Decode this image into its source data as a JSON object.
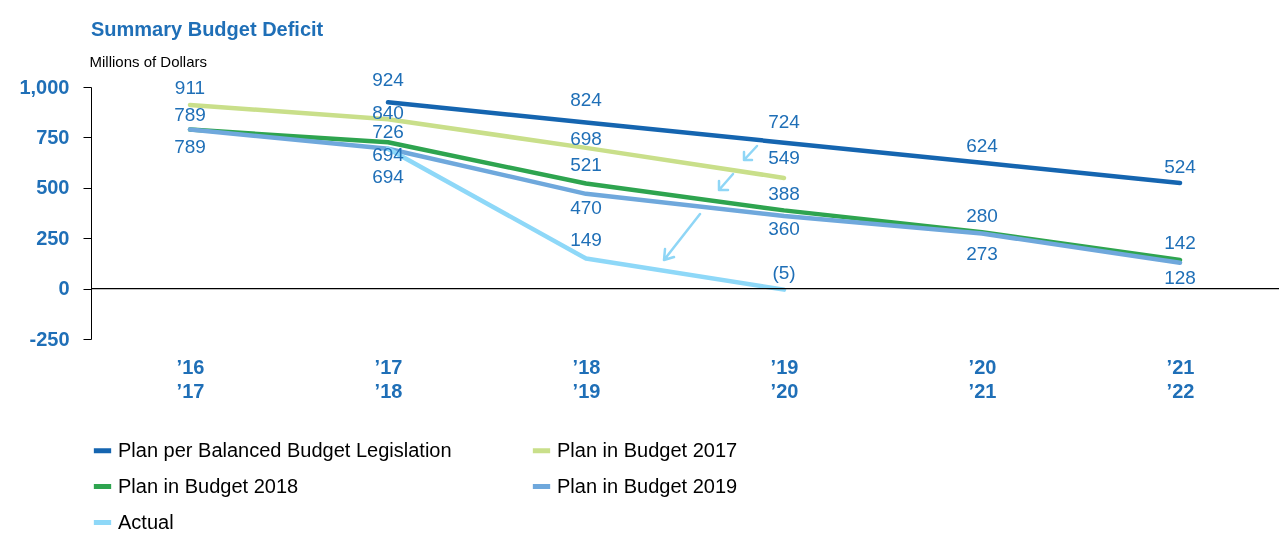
{
  "chart_data": {
    "type": "line",
    "title": "Summary Budget Deficit",
    "ylabel": "Millions of Dollars",
    "categories": [
      "’16\n’17",
      "’17\n’18",
      "’18\n’19",
      "’19\n’20",
      "’20\n’21",
      "’21\n’22"
    ],
    "series": [
      {
        "name": "Plan per Balanced Budget Legislation",
        "color": "#1565b0",
        "values": [
          null,
          924,
          824,
          724,
          624,
          524
        ],
        "value_labels": [
          null,
          "924",
          "824",
          "724",
          "624",
          "524"
        ]
      },
      {
        "name": "Plan in Budget 2017",
        "color": "#c9df8a",
        "values": [
          911,
          840,
          698,
          549,
          null,
          null
        ],
        "value_labels": [
          "911",
          "840",
          "698",
          "549",
          null,
          null
        ]
      },
      {
        "name": "Plan in Budget 2018",
        "color": "#2ea44f",
        "values": [
          789,
          726,
          521,
          388,
          280,
          142
        ],
        "value_labels": [
          "789",
          "726",
          "521",
          "388",
          "280",
          "142"
        ]
      },
      {
        "name": "Plan in Budget 2019",
        "color": "#6fa8dc",
        "values": [
          789,
          694,
          470,
          360,
          273,
          128
        ],
        "value_labels": [
          "789",
          "694",
          "470",
          "360",
          "273",
          "128"
        ]
      },
      {
        "name": "Actual",
        "color": "#8ed8f8",
        "values": [
          null,
          694,
          149,
          -5,
          null,
          null
        ],
        "value_labels": [
          null,
          "694",
          "149",
          "(5)",
          null,
          null
        ]
      }
    ],
    "ylim": [
      -250,
      1000
    ],
    "yticks": [
      {
        "value": 1000,
        "label": "1,000"
      },
      750,
      500,
      250,
      0,
      -250
    ],
    "ref_lines": [
      {
        "axis": "y",
        "value": 0,
        "color": "#000000"
      }
    ],
    "grid": false,
    "legend": "bottom",
    "marker": "none",
    "line_style": "solid"
  }
}
